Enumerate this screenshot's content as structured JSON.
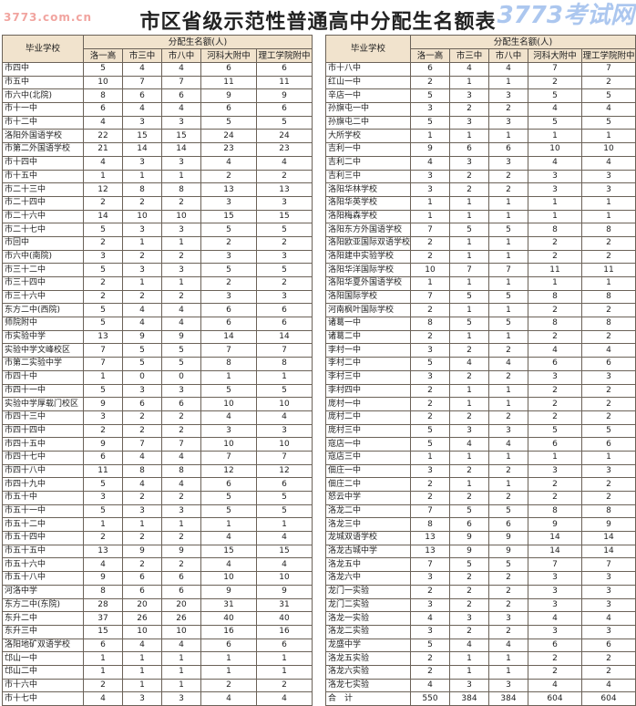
{
  "title": "市区省级示范性普通高中分配生名额表",
  "header": {
    "school_col": "毕业学校",
    "group": "分配生名额(人)",
    "columns": [
      "洛一高",
      "市三中",
      "市八中",
      "河科大附中",
      "理工学院附中"
    ]
  },
  "watermark": {
    "main": "3773考试网",
    "url": "3773.com.cn"
  },
  "colors": {
    "header_bg": "#f1e3cd",
    "border": "#6b6258"
  },
  "left_rows": [
    [
      "市四中",
      5,
      4,
      4,
      6,
      6
    ],
    [
      "市五中",
      10,
      7,
      7,
      11,
      11
    ],
    [
      "市六中(北院)",
      8,
      6,
      6,
      9,
      9
    ],
    [
      "市十一中",
      6,
      4,
      4,
      6,
      6
    ],
    [
      "市十二中",
      4,
      3,
      3,
      5,
      5
    ],
    [
      "洛阳外国语学校",
      22,
      15,
      15,
      24,
      24
    ],
    [
      "市第二外国语学校",
      21,
      14,
      14,
      23,
      23
    ],
    [
      "市十四中",
      4,
      3,
      3,
      4,
      4
    ],
    [
      "市十五中",
      1,
      1,
      1,
      2,
      2
    ],
    [
      "市二十三中",
      12,
      8,
      8,
      13,
      13
    ],
    [
      "市二十四中",
      2,
      2,
      2,
      3,
      3
    ],
    [
      "市二十六中",
      14,
      10,
      10,
      15,
      15
    ],
    [
      "市二十七中",
      5,
      3,
      3,
      5,
      5
    ],
    [
      "市回中",
      2,
      1,
      1,
      2,
      2
    ],
    [
      "市六中(南院)",
      3,
      2,
      2,
      3,
      3
    ],
    [
      "市三十二中",
      5,
      3,
      3,
      5,
      5
    ],
    [
      "市三十四中",
      2,
      1,
      1,
      2,
      2
    ],
    [
      "市三十六中",
      2,
      2,
      2,
      3,
      3
    ],
    [
      "东方二中(西院)",
      5,
      4,
      4,
      6,
      6
    ],
    [
      "师院附中",
      5,
      4,
      4,
      6,
      6
    ],
    [
      "市实验中学",
      13,
      9,
      9,
      14,
      14
    ],
    [
      "实验中学文峰校区",
      7,
      5,
      5,
      7,
      7
    ],
    [
      "市第二实验中学",
      7,
      5,
      5,
      8,
      8
    ],
    [
      "市四十中",
      1,
      0,
      0,
      1,
      1
    ],
    [
      "市四十一中",
      5,
      3,
      3,
      5,
      5
    ],
    [
      "实验中学厚载门校区",
      9,
      6,
      6,
      10,
      10
    ],
    [
      "市四十三中",
      3,
      2,
      2,
      4,
      4
    ],
    [
      "市四十四中",
      2,
      2,
      2,
      3,
      3
    ],
    [
      "市四十五中",
      9,
      7,
      7,
      10,
      10
    ],
    [
      "市四十七中",
      6,
      4,
      4,
      7,
      7
    ],
    [
      "市四十八中",
      11,
      8,
      8,
      12,
      12
    ],
    [
      "市四十九中",
      5,
      4,
      4,
      6,
      6
    ],
    [
      "市五十中",
      3,
      2,
      2,
      5,
      5
    ],
    [
      "市五十一中",
      5,
      3,
      3,
      5,
      5
    ],
    [
      "市五十二中",
      1,
      1,
      1,
      1,
      1
    ],
    [
      "市五十四中",
      2,
      2,
      2,
      4,
      4
    ],
    [
      "市五十五中",
      13,
      9,
      9,
      15,
      15
    ],
    [
      "市五十六中",
      4,
      2,
      2,
      4,
      4
    ],
    [
      "市五十八中",
      9,
      6,
      6,
      10,
      10
    ],
    [
      "河洛中学",
      8,
      6,
      6,
      9,
      9
    ],
    [
      "东方二中(东院)",
      28,
      20,
      20,
      31,
      31
    ],
    [
      "东升二中",
      37,
      26,
      26,
      40,
      40
    ],
    [
      "东升三中",
      15,
      10,
      10,
      16,
      16
    ],
    [
      "洛阳地矿双语学校",
      6,
      4,
      4,
      6,
      6
    ],
    [
      "邙山一中",
      1,
      1,
      1,
      1,
      1
    ],
    [
      "邙山二中",
      1,
      1,
      1,
      1,
      1
    ],
    [
      "市十六中",
      2,
      1,
      1,
      2,
      2
    ],
    [
      "市十七中",
      4,
      3,
      3,
      4,
      4
    ]
  ],
  "right_rows": [
    [
      "市十八中",
      6,
      4,
      4,
      7,
      7
    ],
    [
      "红山一中",
      2,
      1,
      1,
      2,
      2
    ],
    [
      "辛店一中",
      5,
      3,
      3,
      5,
      5
    ],
    [
      "孙旗屯一中",
      3,
      2,
      2,
      4,
      4
    ],
    [
      "孙旗屯二中",
      5,
      3,
      3,
      5,
      5
    ],
    [
      "大所学校",
      1,
      1,
      1,
      1,
      1
    ],
    [
      "吉利一中",
      9,
      6,
      6,
      10,
      10
    ],
    [
      "吉利二中",
      4,
      3,
      3,
      4,
      4
    ],
    [
      "吉利三中",
      3,
      2,
      2,
      3,
      3
    ],
    [
      "洛阳华林学校",
      3,
      2,
      2,
      3,
      3
    ],
    [
      "洛阳华英学校",
      1,
      1,
      1,
      1,
      1
    ],
    [
      "洛阳梅森学校",
      1,
      1,
      1,
      1,
      1
    ],
    [
      "洛阳东方外国语学校",
      7,
      5,
      5,
      8,
      8
    ],
    [
      "洛阳欧亚国际双语学校",
      2,
      1,
      1,
      2,
      2
    ],
    [
      "洛阳建中实验学校",
      2,
      1,
      1,
      2,
      2
    ],
    [
      "洛阳华洋国际学校",
      10,
      7,
      7,
      11,
      11
    ],
    [
      "洛阳华夏外国语学校",
      1,
      1,
      1,
      1,
      1
    ],
    [
      "洛阳国际学校",
      7,
      5,
      5,
      8,
      8
    ],
    [
      "河南枫叶国际学校",
      2,
      1,
      1,
      2,
      2
    ],
    [
      "诸葛一中",
      8,
      5,
      5,
      8,
      8
    ],
    [
      "诸葛二中",
      2,
      1,
      1,
      2,
      2
    ],
    [
      "李村一中",
      3,
      2,
      2,
      4,
      4
    ],
    [
      "李村二中",
      5,
      4,
      4,
      6,
      6
    ],
    [
      "李村三中",
      3,
      2,
      2,
      3,
      3
    ],
    [
      "李村四中",
      2,
      1,
      1,
      2,
      2
    ],
    [
      "庞村一中",
      2,
      1,
      1,
      2,
      2
    ],
    [
      "庞村二中",
      2,
      2,
      2,
      2,
      2
    ],
    [
      "庞村三中",
      5,
      3,
      3,
      5,
      5
    ],
    [
      "寇店一中",
      5,
      4,
      4,
      6,
      6
    ],
    [
      "寇店三中",
      1,
      1,
      1,
      1,
      1
    ],
    [
      "佃庄一中",
      3,
      2,
      2,
      3,
      3
    ],
    [
      "佃庄二中",
      2,
      1,
      1,
      2,
      2
    ],
    [
      "怒云中学",
      2,
      2,
      2,
      2,
      2
    ],
    [
      "洛龙二中",
      7,
      5,
      5,
      8,
      8
    ],
    [
      "洛龙三中",
      8,
      6,
      6,
      9,
      9
    ],
    [
      "龙城双语学校",
      13,
      9,
      9,
      14,
      14
    ],
    [
      "洛龙古城中学",
      13,
      9,
      9,
      14,
      14
    ],
    [
      "洛龙五中",
      7,
      5,
      5,
      7,
      7
    ],
    [
      "洛龙六中",
      3,
      2,
      2,
      3,
      3
    ],
    [
      "龙门一实验",
      2,
      2,
      2,
      3,
      3
    ],
    [
      "龙门二实验",
      3,
      2,
      2,
      3,
      3
    ],
    [
      "洛龙一实验",
      4,
      3,
      3,
      4,
      4
    ],
    [
      "洛龙二实验",
      3,
      2,
      2,
      3,
      3
    ],
    [
      "龙盛中学",
      5,
      4,
      4,
      6,
      6
    ],
    [
      "洛龙五实验",
      2,
      1,
      1,
      2,
      2
    ],
    [
      "洛龙六实验",
      2,
      1,
      1,
      2,
      2
    ],
    [
      "洛龙七实验",
      4,
      3,
      3,
      4,
      4
    ],
    [
      "合　计",
      550,
      384,
      384,
      604,
      604
    ]
  ]
}
